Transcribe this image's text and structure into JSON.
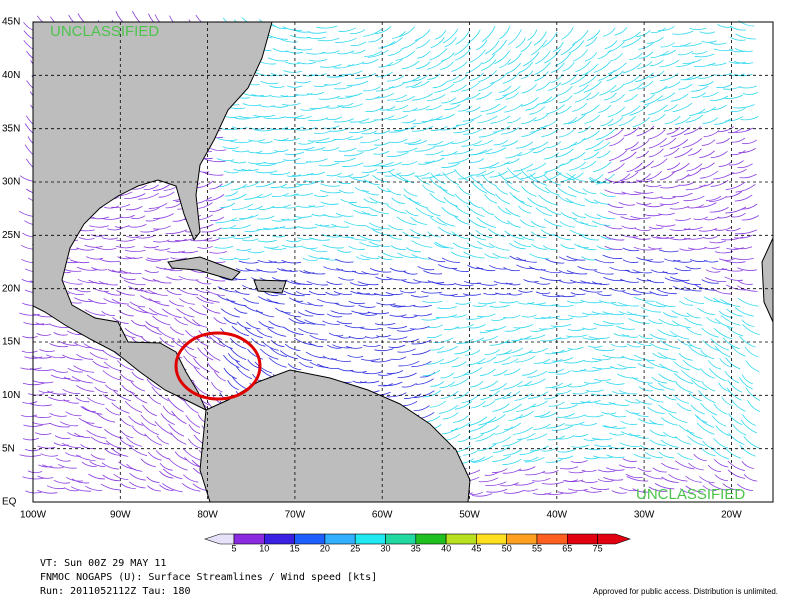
{
  "map": {
    "watermark_top": "UNCLASSIFIED",
    "watermark_bottom": "UNCLASSIFIED",
    "latitude_labels": [
      "45N",
      "40N",
      "35N",
      "30N",
      "25N",
      "20N",
      "15N",
      "10N",
      "5N",
      "EQ"
    ],
    "longitude_labels": [
      "100W",
      "90W",
      "80W",
      "70W",
      "60W",
      "50W",
      "40W",
      "30W",
      "20W"
    ]
  },
  "colorbar": {
    "labels": [
      5,
      10,
      15,
      20,
      25,
      30,
      35,
      40,
      45,
      50,
      55,
      65,
      75
    ],
    "colors": [
      "#e6e0f8",
      "#8a2be2",
      "#3a20e0",
      "#1e60ff",
      "#30b0ff",
      "#20e8f0",
      "#20d8a0",
      "#20c020",
      "#b8e020",
      "#ffe020",
      "#ffa020",
      "#ff6020",
      "#e00010"
    ]
  },
  "footer": {
    "valid_time": "VT: Sun 00Z 29 MAY 11",
    "model": "FNMOC NOGAPS (U): Surface Streamlines / Wind speed [kts]",
    "run": "Run: 2011052112Z Tau: 180",
    "release": "Approved for public access. Distribution is unlimited."
  }
}
